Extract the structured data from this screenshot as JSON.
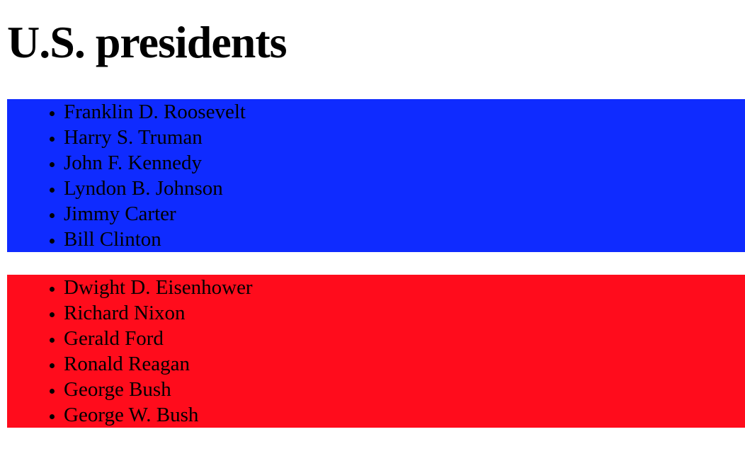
{
  "heading": "U.S. presidents",
  "colors": {
    "democrats_bg": "#0f2bff",
    "republicans_bg": "#ff0c1c"
  },
  "democrats": [
    "Franklin D. Roosevelt",
    "Harry S. Truman",
    "John F. Kennedy",
    "Lyndon B. Johnson",
    "Jimmy Carter",
    "Bill Clinton"
  ],
  "republicans": [
    "Dwight D. Eisenhower",
    "Richard Nixon",
    "Gerald Ford",
    "Ronald Reagan",
    "George Bush",
    "George W. Bush"
  ]
}
